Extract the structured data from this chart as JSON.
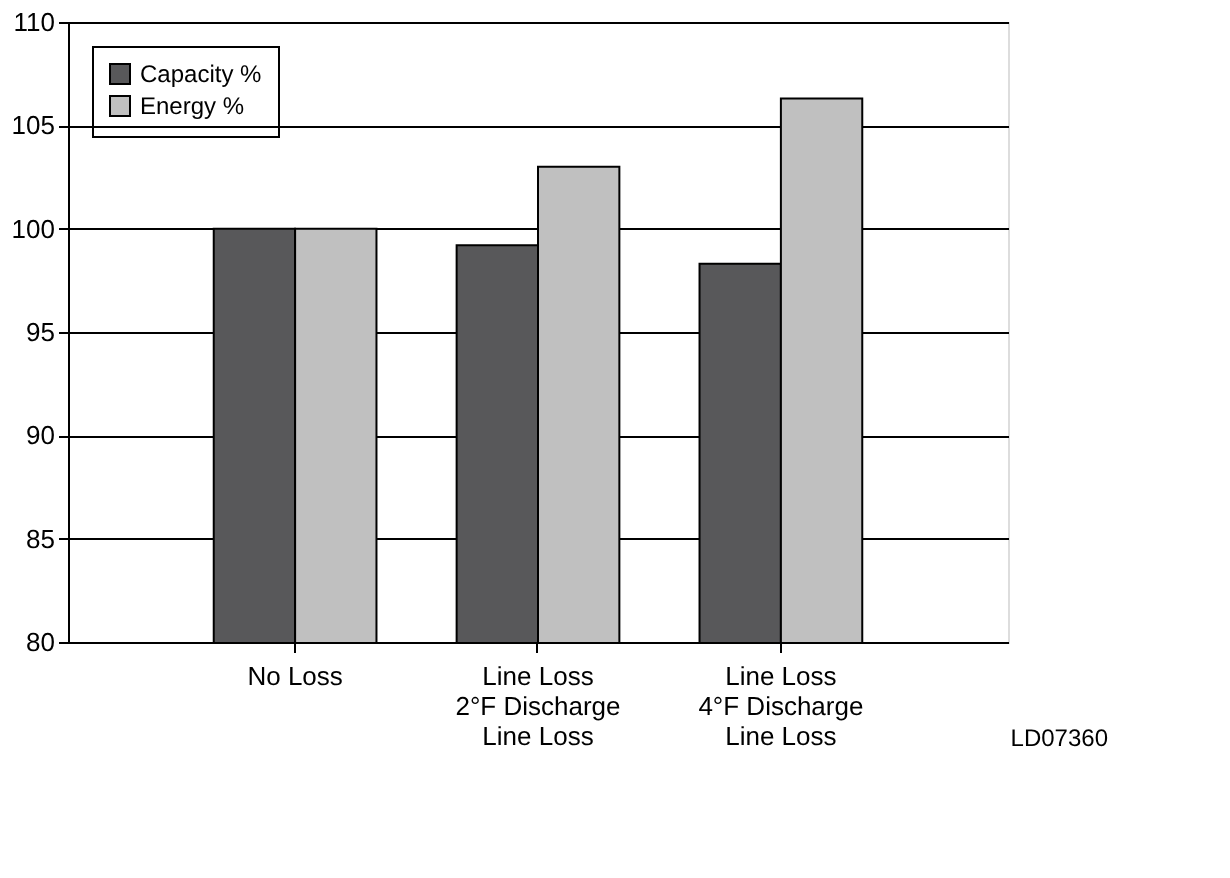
{
  "chart_data": {
    "type": "bar",
    "categories": [
      "No Loss",
      "Line Loss\n2°F Discharge\nLine Loss",
      "Line Loss\n4°F Discharge\nLine Loss"
    ],
    "series": [
      {
        "name": "Capacity %",
        "color": "#58585a",
        "values": [
          100,
          99.2,
          98.3
        ]
      },
      {
        "name": "Energy %",
        "color": "#c0c0c0",
        "values": [
          100,
          103,
          106.3
        ]
      }
    ],
    "ylim": [
      80,
      110
    ],
    "yticks": [
      80,
      85,
      90,
      95,
      100,
      105,
      110
    ],
    "grid": "y",
    "legend": "top left",
    "annotations": [
      "LD07360"
    ]
  }
}
